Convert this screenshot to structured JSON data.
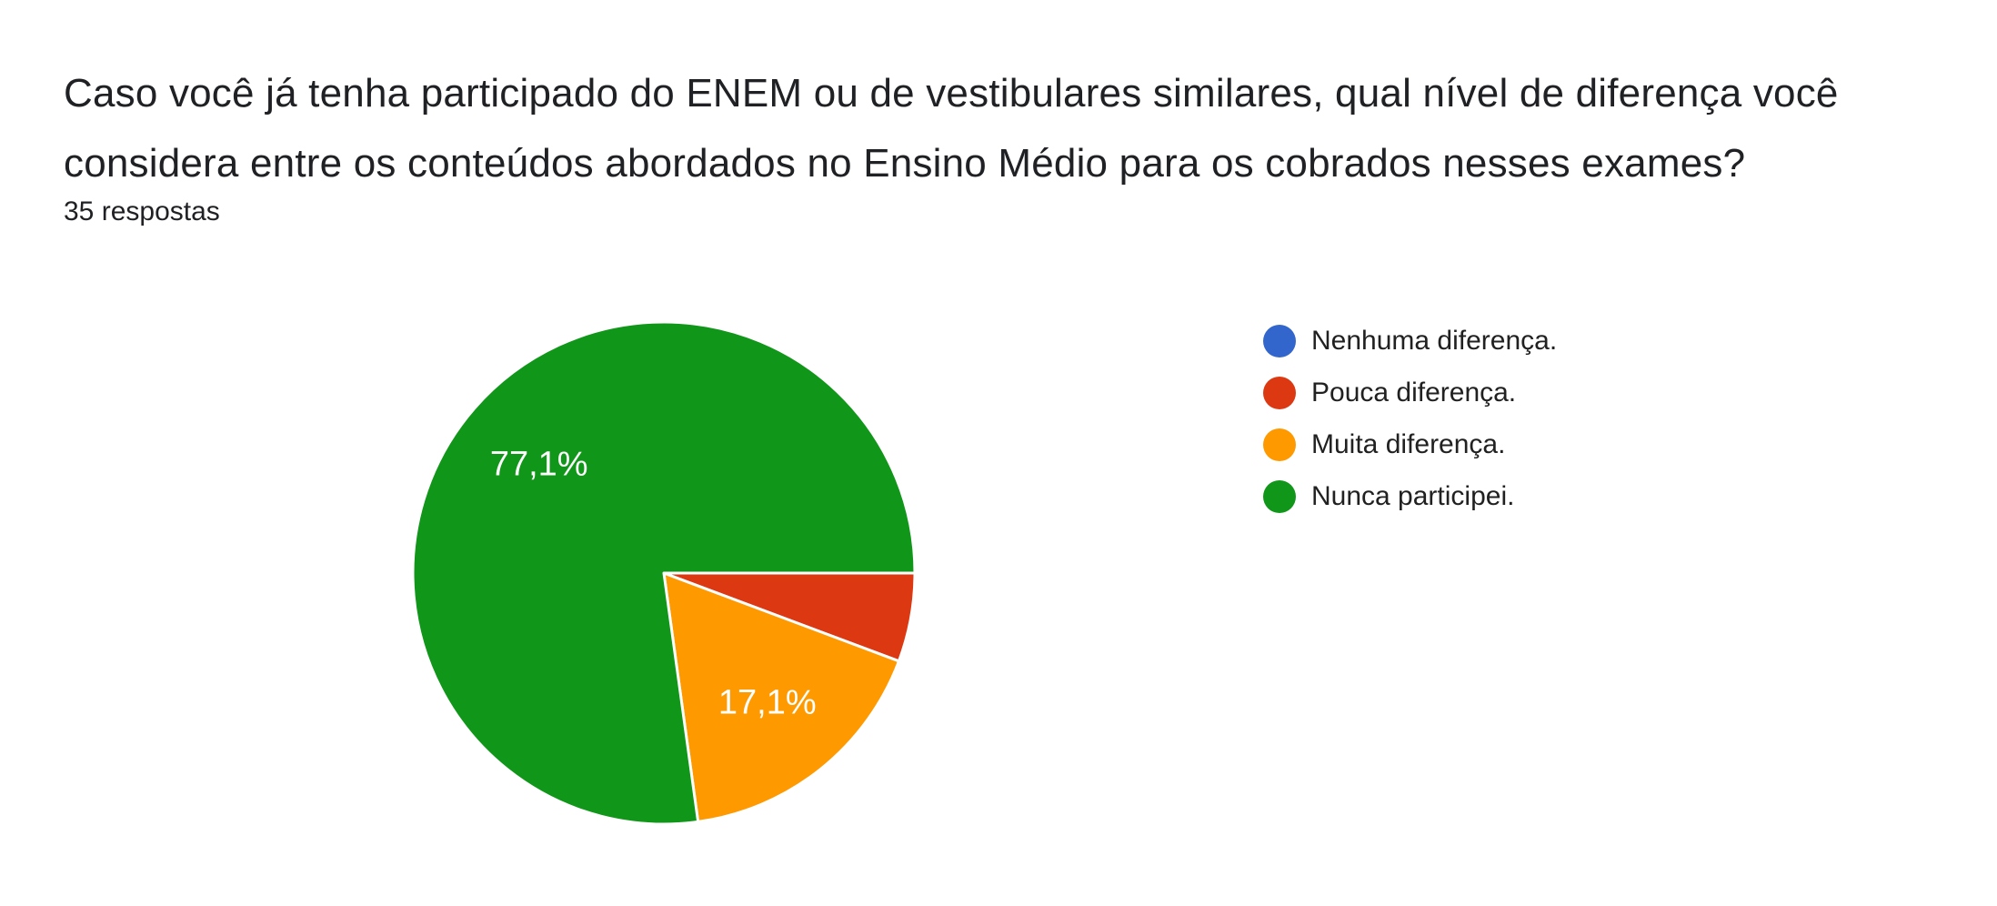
{
  "page": {
    "background_color": "#ffffff",
    "text_color": "#202124",
    "question_title_lines": [
      "Caso você já tenha participado do ENEM ou de vestibulares similares, qual nível de diferença você",
      "considera entre os conteúdos abordados no Ensino Médio para os cobrados nesses exames?"
    ],
    "response_count": "35 respostas"
  },
  "chart_data": {
    "type": "pie",
    "title": "Caso você já tenha participado do ENEM ou de vestibulares similares, qual nível de diferença você considera entre os conteúdos abordados no Ensino Médio para os cobrados nesses exames?",
    "subtitle": "35 respostas",
    "total_responses": 35,
    "legend_position": "right",
    "start_angle": "east",
    "direction": "clockwise",
    "slice_label_color": "#ffffff",
    "slice_separator_color": "#ffffff",
    "slices": [
      {
        "label": "Nenhuma diferença.",
        "pct": 0,
        "display_pct": null,
        "color": "#3366CC"
      },
      {
        "label": "Pouca diferença.",
        "pct": 5.7,
        "display_pct": null,
        "color": "#DC3912"
      },
      {
        "label": "Muita diferença.",
        "pct": 17.1,
        "display_pct": "17,1%",
        "color": "#FF9900"
      },
      {
        "label": "Nunca participei.",
        "pct": 77.1,
        "display_pct": "77,1%",
        "color": "#109618"
      }
    ]
  }
}
